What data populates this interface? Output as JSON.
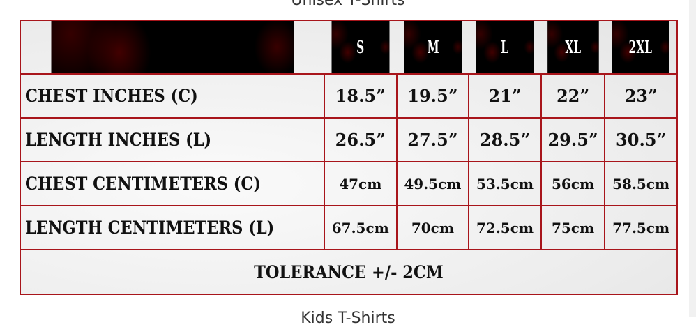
{
  "page": {
    "title_above": "Unisex T-Shirts",
    "title_below": "Kids T-Shirts"
  },
  "size_table": {
    "sizes": [
      "S",
      "M",
      "L",
      "XL",
      "2XL"
    ],
    "rows": [
      {
        "label": "Chest Inches (C)",
        "values": [
          "18.5”",
          "19.5”",
          "21”",
          "22”",
          "23”"
        ]
      },
      {
        "label": "Length Inches (L)",
        "values": [
          "26.5”",
          "27.5”",
          "28.5”",
          "29.5”",
          "30.5”"
        ]
      },
      {
        "label": "Chest Centimeters (C)",
        "values": [
          "47cm",
          "49.5cm",
          "53.5cm",
          "56cm",
          "58.5cm"
        ]
      },
      {
        "label": "Length Centimeters (L)",
        "values": [
          "67.5cm",
          "70cm",
          "72.5cm",
          "75cm",
          "77.5cm"
        ]
      }
    ],
    "tolerance": "TOLERANCE +/- 2CM",
    "colors": {
      "border": "#a8151b",
      "header_bg": "#000000"
    }
  }
}
